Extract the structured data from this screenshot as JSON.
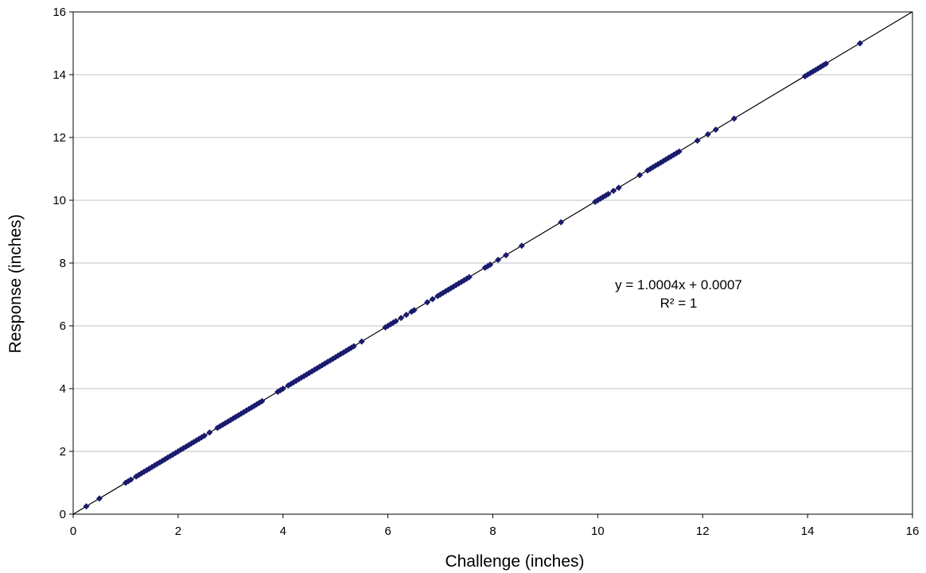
{
  "chart_data": {
    "type": "scatter",
    "title": "",
    "xlabel": "Challenge (inches)",
    "ylabel": "Response (inches)",
    "xlim": [
      0,
      16
    ],
    "ylim": [
      0,
      16
    ],
    "x_ticks": [
      "0",
      "2",
      "4",
      "6",
      "8",
      "10",
      "12",
      "14",
      "16"
    ],
    "y_ticks": [
      "0",
      "2",
      "4",
      "6",
      "8",
      "10",
      "12",
      "14",
      "16"
    ],
    "grid": "horizontal",
    "legend": "none",
    "marker": "diamond",
    "colors": {
      "marker": "#1a1a6e",
      "trendline": "#000000",
      "grid": "#c0c0c0"
    },
    "trendline": {
      "type": "linear",
      "slope": 1.0004,
      "intercept": 0.0007,
      "equation_text": "y = 1.0004x + 0.0007",
      "r2_text": "R² = 1"
    },
    "series": [
      {
        "x": [
          0.25,
          0.5,
          1.0,
          1.05,
          1.1,
          1.2,
          1.25,
          1.3,
          1.35,
          1.4,
          1.45,
          1.5,
          1.55,
          1.6,
          1.65,
          1.7,
          1.75,
          1.8,
          1.85,
          1.9,
          1.95,
          2.0,
          2.05,
          2.1,
          2.15,
          2.2,
          2.25,
          2.3,
          2.35,
          2.4,
          2.45,
          2.5,
          2.6,
          2.75,
          2.8,
          2.85,
          2.9,
          2.95,
          3.0,
          3.05,
          3.1,
          3.15,
          3.2,
          3.25,
          3.3,
          3.35,
          3.4,
          3.45,
          3.5,
          3.55,
          3.6,
          3.9,
          3.95,
          4.0,
          4.1,
          4.15,
          4.2,
          4.25,
          4.3,
          4.35,
          4.4,
          4.45,
          4.5,
          4.55,
          4.6,
          4.65,
          4.7,
          4.75,
          4.8,
          4.85,
          4.9,
          4.95,
          5.0,
          5.05,
          5.1,
          5.15,
          5.2,
          5.25,
          5.3,
          5.35,
          5.5,
          5.95,
          6.0,
          6.05,
          6.1,
          6.15,
          6.25,
          6.35,
          6.45,
          6.5,
          6.75,
          6.85,
          6.95,
          7.0,
          7.05,
          7.1,
          7.15,
          7.2,
          7.25,
          7.3,
          7.35,
          7.4,
          7.45,
          7.5,
          7.55,
          7.85,
          7.9,
          7.95,
          8.1,
          8.25,
          8.55,
          9.3,
          9.95,
          10.0,
          10.05,
          10.1,
          10.15,
          10.2,
          10.3,
          10.4,
          10.8,
          10.95,
          11.0,
          11.05,
          11.1,
          11.15,
          11.2,
          11.25,
          11.3,
          11.35,
          11.4,
          11.45,
          11.5,
          11.55,
          11.9,
          12.1,
          12.25,
          12.6,
          13.95,
          14.0,
          14.05,
          14.1,
          14.15,
          14.2,
          14.25,
          14.3,
          14.35,
          15.0
        ],
        "y": [
          0.25,
          0.5,
          1.0,
          1.05,
          1.1,
          1.2,
          1.25,
          1.3,
          1.35,
          1.4,
          1.45,
          1.5,
          1.55,
          1.6,
          1.65,
          1.7,
          1.75,
          1.8,
          1.85,
          1.9,
          1.95,
          2.0,
          2.05,
          2.1,
          2.15,
          2.2,
          2.25,
          2.3,
          2.35,
          2.4,
          2.45,
          2.5,
          2.6,
          2.75,
          2.8,
          2.85,
          2.9,
          2.95,
          3.0,
          3.05,
          3.1,
          3.15,
          3.2,
          3.25,
          3.3,
          3.35,
          3.4,
          3.45,
          3.5,
          3.55,
          3.6,
          3.9,
          3.95,
          4.0,
          4.1,
          4.15,
          4.2,
          4.25,
          4.3,
          4.35,
          4.4,
          4.45,
          4.5,
          4.55,
          4.6,
          4.65,
          4.7,
          4.75,
          4.8,
          4.85,
          4.9,
          4.95,
          5.0,
          5.05,
          5.1,
          5.15,
          5.2,
          5.25,
          5.3,
          5.35,
          5.5,
          5.95,
          6.0,
          6.05,
          6.1,
          6.15,
          6.25,
          6.35,
          6.45,
          6.5,
          6.75,
          6.85,
          6.95,
          7.0,
          7.05,
          7.1,
          7.15,
          7.2,
          7.25,
          7.3,
          7.35,
          7.4,
          7.45,
          7.5,
          7.55,
          7.85,
          7.9,
          7.95,
          8.1,
          8.25,
          8.55,
          9.3,
          9.95,
          10.0,
          10.05,
          10.1,
          10.15,
          10.2,
          10.3,
          10.4,
          10.8,
          10.95,
          11.0,
          11.05,
          11.1,
          11.15,
          11.2,
          11.25,
          11.3,
          11.35,
          11.4,
          11.45,
          11.5,
          11.55,
          11.9,
          12.1,
          12.25,
          12.6,
          13.95,
          14.0,
          14.05,
          14.1,
          14.15,
          14.2,
          14.25,
          14.3,
          14.35,
          15.0
        ]
      }
    ]
  }
}
